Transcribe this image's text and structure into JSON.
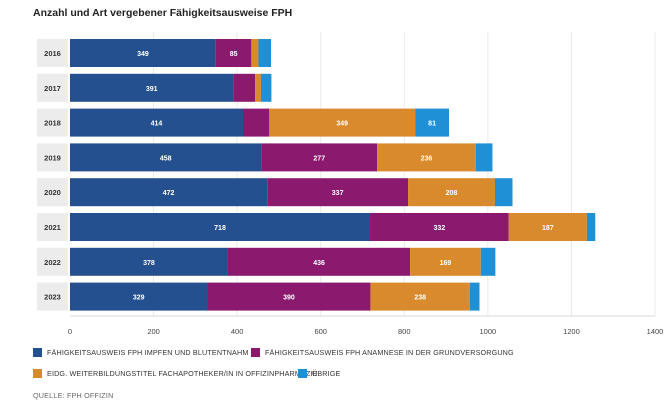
{
  "title": "Anzahl und Art vergebener Fähigkeitsausweise FPH",
  "source": "QUELLE: FPH OFFIZIN",
  "chart_data": {
    "type": "bar",
    "orientation": "horizontal",
    "stacked": true,
    "categories": [
      "2016",
      "2017",
      "2018",
      "2019",
      "2020",
      "2021",
      "2022",
      "2023"
    ],
    "series": [
      {
        "name": "FÄHIGKEITSAUSWEIS FPH IMPFEN UND BLUTENTNAHM",
        "color": "#25508f",
        "values": [
          349,
          391,
          414,
          458,
          472,
          718,
          378,
          329
        ]
      },
      {
        "name": "FÄHIGKEITSAUSWEIS FPH ANAMNESE IN DER GRUNDVERSORGUNG",
        "color": "#8b1a6f",
        "values": [
          85,
          52,
          63,
          277,
          337,
          332,
          436,
          390
        ]
      },
      {
        "name": "EIDG. WEITERBILDUNGSTITEL FACHAPOTHEKER/IN IN OFFIZINPHARMAZIE",
        "color": "#d88a2c",
        "values": [
          17,
          14,
          349,
          236,
          208,
          187,
          169,
          238
        ]
      },
      {
        "name": "ÜBRIGE",
        "color": "#1f8fd6",
        "values": [
          30,
          25,
          81,
          40,
          42,
          20,
          35,
          23
        ]
      }
    ],
    "data_labels": [
      [
        "349",
        "85",
        "",
        ""
      ],
      [
        "391",
        "",
        "",
        ""
      ],
      [
        "414",
        "",
        "349",
        "81"
      ],
      [
        "458",
        "277",
        "236",
        ""
      ],
      [
        "472",
        "337",
        "208",
        ""
      ],
      [
        "718",
        "332",
        "187",
        ""
      ],
      [
        "378",
        "436",
        "169",
        ""
      ],
      [
        "329",
        "390",
        "238",
        ""
      ]
    ],
    "x_ticks": [
      0,
      200,
      400,
      600,
      800,
      1000,
      1200,
      1400
    ],
    "xlim": [
      0,
      1400
    ],
    "grid": true,
    "legend_position": "bottom"
  }
}
